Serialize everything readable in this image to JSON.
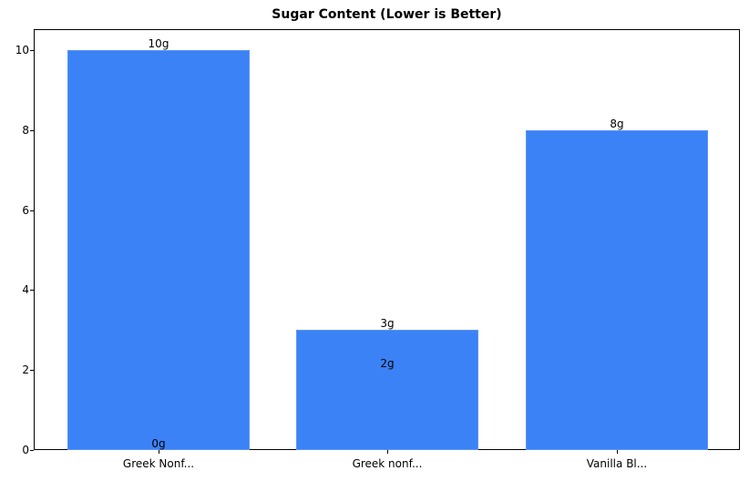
{
  "chart_data": {
    "type": "bar",
    "title": "Sugar Content (Lower is Better)",
    "xlabel": "",
    "ylabel": "",
    "categories": [
      "Greek Nonf...",
      "Greek nonf...",
      "Vanilla Bl..."
    ],
    "values": [
      10,
      3,
      8
    ],
    "bar_labels": [
      "10g",
      "3g",
      "8g"
    ],
    "annotations": [
      {
        "text": "0g",
        "x": "Greek Nonf...",
        "y": 0
      },
      {
        "text": "2g",
        "x": "Greek nonf...",
        "y": 2
      }
    ],
    "yticks": [
      0,
      2,
      4,
      6,
      8,
      10
    ],
    "ylim": [
      0,
      10.5
    ],
    "grid": false,
    "legend": null,
    "bar_color": "#3b82f6"
  }
}
